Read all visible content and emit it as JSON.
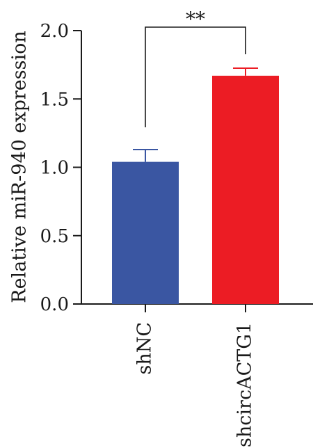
{
  "chart_data": {
    "type": "bar",
    "title": "",
    "xlabel": "",
    "ylabel": "Relative miR-940 expression",
    "ylim": [
      0,
      2.0
    ],
    "yticks": [
      "0.0",
      "0.5",
      "1.0",
      "1.5",
      "2.0"
    ],
    "categories": [
      "shNC",
      "shcircACTG1"
    ],
    "values": [
      1.04,
      1.67
    ],
    "errors": [
      0.09,
      0.055
    ],
    "colors": [
      "#3a56a2",
      "#ec1c24"
    ],
    "significance": {
      "label": "**",
      "pair": [
        0,
        1
      ]
    },
    "grid": false,
    "legend": "none"
  }
}
